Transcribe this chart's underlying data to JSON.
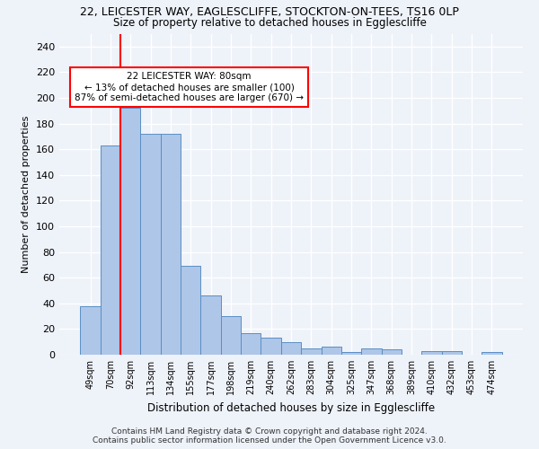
{
  "title_line1": "22, LEICESTER WAY, EAGLESCLIFFE, STOCKTON-ON-TEES, TS16 0LP",
  "title_line2": "Size of property relative to detached houses in Egglescliffe",
  "xlabel": "Distribution of detached houses by size in Egglescliffe",
  "ylabel": "Number of detached properties",
  "categories": [
    "49sqm",
    "70sqm",
    "92sqm",
    "113sqm",
    "134sqm",
    "155sqm",
    "177sqm",
    "198sqm",
    "219sqm",
    "240sqm",
    "262sqm",
    "283sqm",
    "304sqm",
    "325sqm",
    "347sqm",
    "368sqm",
    "389sqm",
    "410sqm",
    "432sqm",
    "453sqm",
    "474sqm"
  ],
  "values": [
    38,
    163,
    192,
    172,
    172,
    69,
    46,
    30,
    17,
    13,
    10,
    5,
    6,
    2,
    5,
    4,
    0,
    3,
    3,
    0,
    2
  ],
  "bar_color": "#aec6e8",
  "bar_edge_color": "#5a8fc4",
  "red_line_x": 1.5,
  "annotation_text": "22 LEICESTER WAY: 80sqm\n← 13% of detached houses are smaller (100)\n87% of semi-detached houses are larger (670) →",
  "annotation_box_color": "white",
  "annotation_box_edge": "red",
  "ylim": [
    0,
    250
  ],
  "yticks": [
    0,
    20,
    40,
    60,
    80,
    100,
    120,
    140,
    160,
    180,
    200,
    220,
    240
  ],
  "footnote_line1": "Contains HM Land Registry data © Crown copyright and database right 2024.",
  "footnote_line2": "Contains public sector information licensed under the Open Government Licence v3.0.",
  "background_color": "#eef2f9",
  "grid_color": "white"
}
